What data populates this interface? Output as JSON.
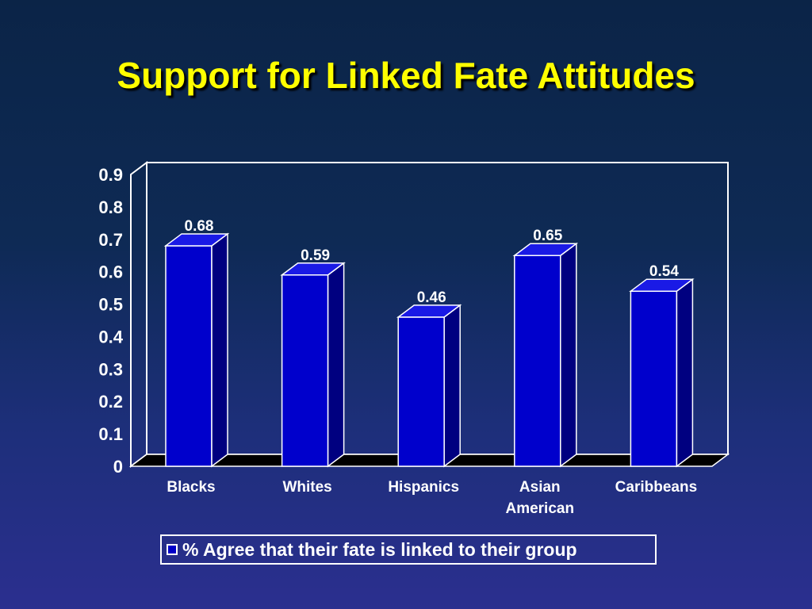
{
  "slide": {
    "title": "Support for Linked Fate Attitudes"
  },
  "chart_data": {
    "type": "bar",
    "categories": [
      "Blacks",
      "Whites",
      "Hispanics",
      "Asian American",
      "Caribbeans"
    ],
    "category_lines": [
      [
        "Blacks"
      ],
      [
        "Whites"
      ],
      [
        "Hispanics"
      ],
      [
        "Asian",
        "American"
      ],
      [
        "Caribbeans"
      ]
    ],
    "series": [
      {
        "name": "% Agree that their fate is linked to their group",
        "values": [
          0.68,
          0.59,
          0.46,
          0.65,
          0.54
        ]
      }
    ],
    "data_labels": [
      "0.68",
      "0.59",
      "0.46",
      "0.65",
      "0.54"
    ],
    "y_ticks": [
      "0",
      "0.1",
      "0.2",
      "0.3",
      "0.4",
      "0.5",
      "0.6",
      "0.7",
      "0.8",
      "0.9"
    ],
    "ylim": [
      0,
      0.9
    ],
    "title": "",
    "xlabel": "",
    "ylabel": "",
    "legend_position": "bottom",
    "three_d": true,
    "colors": {
      "bar_front": "#0000cc",
      "bar_side": "#000080",
      "bar_top": "#1a1ae6",
      "floor": "#000000",
      "outline": "#ffffff",
      "title": "#ffff00"
    }
  }
}
